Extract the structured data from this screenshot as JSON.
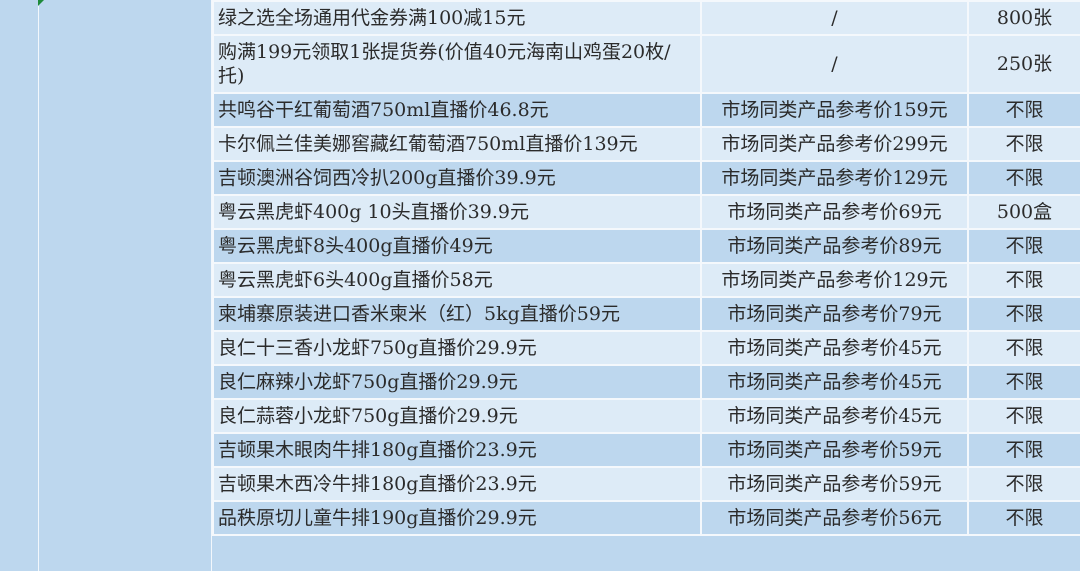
{
  "rows": [
    {
      "product": "绿之选全场通用代金券满100减15元",
      "ref": "/",
      "qty": "800张"
    },
    {
      "product": "购满199元领取1张提货券(价值40元海南山鸡蛋20枚/托)",
      "ref": "/",
      "qty": "250张"
    },
    {
      "product": "共鸣谷干红葡萄酒750ml直播价46.8元",
      "ref": "市场同类产品参考价159元",
      "qty": "不限"
    },
    {
      "product": "卡尔佩兰佳美娜窖藏红葡萄酒750ml直播价139元",
      "ref": "市场同类产品参考价299元",
      "qty": "不限"
    },
    {
      "product": "吉顿澳洲谷饲西冷扒200g直播价39.9元",
      "ref": "市场同类产品参考价129元",
      "qty": "不限"
    },
    {
      "product": "粤云黑虎虾400g 10头直播价39.9元",
      "ref": "市场同类产品参考价69元",
      "qty": "500盒"
    },
    {
      "product": "粤云黑虎虾8头400g直播价49元",
      "ref": "市场同类产品参考价89元",
      "qty": "不限"
    },
    {
      "product": "粤云黑虎虾6头400g直播价58元",
      "ref": "市场同类产品参考价129元",
      "qty": "不限"
    },
    {
      "product": "柬埔寨原装进口香米柬米（红）5kg直播价59元",
      "ref": "市场同类产品参考价79元",
      "qty": "不限"
    },
    {
      "product": "良仁十三香小龙虾750g直播价29.9元",
      "ref": "市场同类产品参考价45元",
      "qty": "不限"
    },
    {
      "product": "良仁麻辣小龙虾750g直播价29.9元",
      "ref": "市场同类产品参考价45元",
      "qty": "不限"
    },
    {
      "product": "良仁蒜蓉小龙虾750g直播价29.9元",
      "ref": "市场同类产品参考价45元",
      "qty": "不限"
    },
    {
      "product": "吉顿果木眼肉牛排180g直播价23.9元",
      "ref": "市场同类产品参考价59元",
      "qty": "不限"
    },
    {
      "product": "吉顿果木西冷牛排180g直播价23.9元",
      "ref": "市场同类产品参考价59元",
      "qty": "不限"
    },
    {
      "product": "品秩原切儿童牛排190g直播价29.9元",
      "ref": "市场同类产品参考价56元",
      "qty": "不限"
    }
  ],
  "colors": {
    "row_light": "#ddebf7",
    "row_dark": "#bdd7ee"
  }
}
